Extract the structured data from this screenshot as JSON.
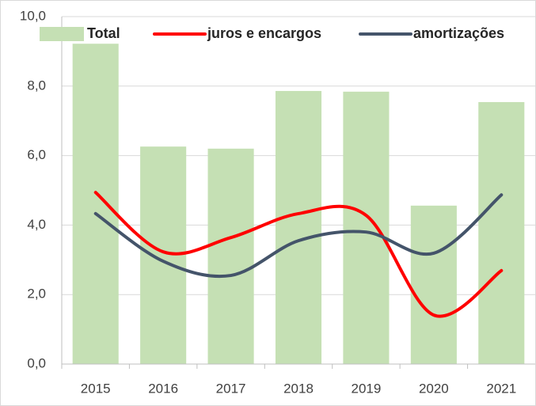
{
  "chart_data": {
    "type": "bar",
    "categories": [
      "2015",
      "2016",
      "2017",
      "2018",
      "2019",
      "2020",
      "2021"
    ],
    "series": [
      {
        "name": "Total",
        "type": "bar",
        "color": "#c5e0b4",
        "values": [
          9.22,
          6.26,
          6.2,
          7.86,
          7.84,
          4.56,
          7.54
        ]
      },
      {
        "name": "juros e encargos",
        "type": "line",
        "color": "#ff0000",
        "values": [
          4.94,
          3.23,
          3.64,
          4.33,
          4.28,
          1.41,
          2.69
        ]
      },
      {
        "name": "amortizações",
        "type": "line",
        "color": "#44546a",
        "values": [
          4.33,
          2.96,
          2.55,
          3.55,
          3.8,
          3.19,
          4.87
        ]
      }
    ],
    "ylim": [
      0,
      10
    ],
    "yticks": [
      {
        "value": 0,
        "label": "0,0"
      },
      {
        "value": 2,
        "label": "2,0"
      },
      {
        "value": 4,
        "label": "4,0"
      },
      {
        "value": 6,
        "label": "6,0"
      },
      {
        "value": 8,
        "label": "8,0"
      },
      {
        "value": 10,
        "label": "10,0"
      }
    ],
    "grid": true,
    "smooth": true,
    "legend": "top"
  }
}
